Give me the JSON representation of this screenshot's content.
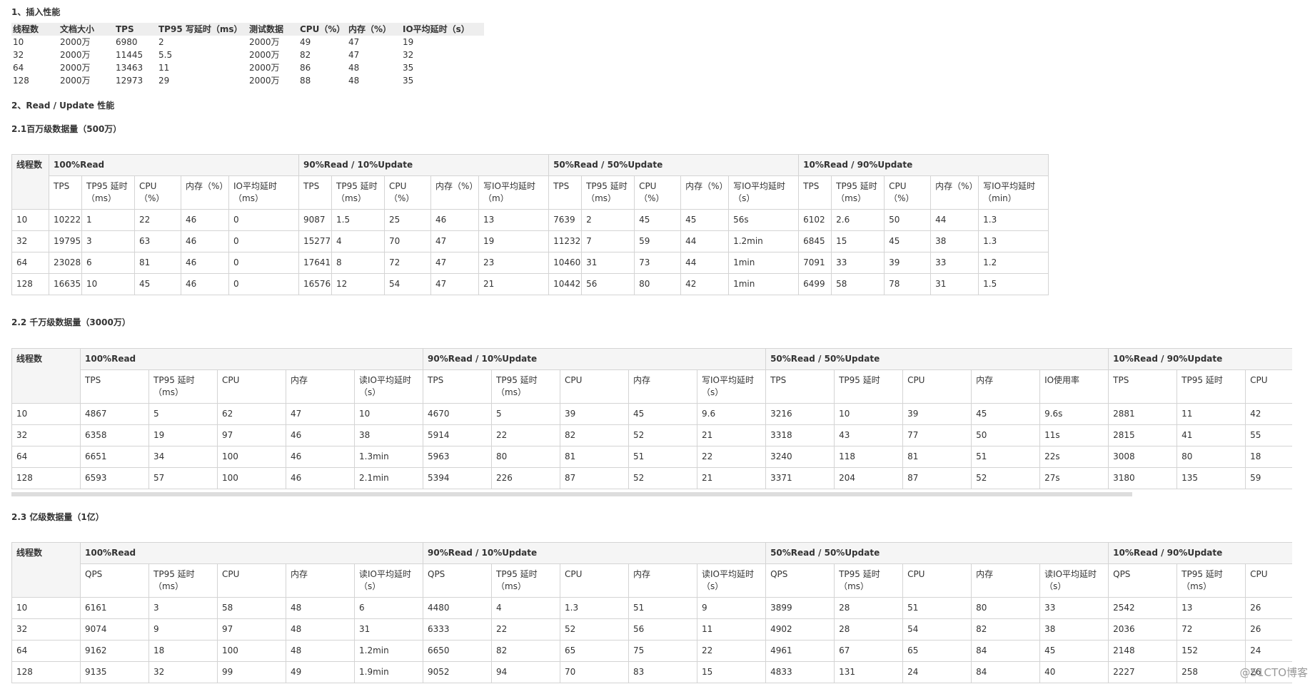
{
  "insert": {
    "title": "1、插入性能",
    "headers": [
      "线程数",
      "文档大小",
      "TPS",
      "TP95 写延时（ms）",
      "测试数据",
      "CPU（%）",
      "内存（%）",
      "IO平均延时（s）"
    ],
    "rows": [
      [
        "10",
        "2000万",
        "6980",
        "2",
        "2000万",
        "49",
        "47",
        "19"
      ],
      [
        "32",
        "2000万",
        "11445",
        "5.5",
        "2000万",
        "82",
        "47",
        "32"
      ],
      [
        "64",
        "2000万",
        "13463",
        "11",
        "2000万",
        "86",
        "48",
        "35"
      ],
      [
        "128",
        "2000万",
        "12973",
        "29",
        "2000万",
        "88",
        "48",
        "35"
      ]
    ]
  },
  "rw_title": "2、Read / Update 性能",
  "tables": [
    {
      "title": "2.1百万级数据量（500万）",
      "corner": "线程数",
      "groups": [
        {
          "name": "100%Read",
          "headers": [
            "TPS",
            "TP95 延时（ms）",
            "CPU（%）",
            "内存（%）",
            "IO平均延时（ms）"
          ]
        },
        {
          "name": "90%Read / 10%Update",
          "headers": [
            "TPS",
            "TP95 延时（ms）",
            "CPU（%）",
            "内存（%）",
            "写IO平均延时（m）"
          ]
        },
        {
          "name": "50%Read / 50%Update",
          "headers": [
            "TPS",
            "TP95 延时（ms）",
            "CPU（%）",
            "内存（%）",
            "写IO平均延时（s）"
          ]
        },
        {
          "name": "10%Read / 90%Update",
          "headers": [
            "TPS",
            "TP95 延时（ms）",
            "CPU（%）",
            "内存（%）",
            "写IO平均延时（min）"
          ]
        }
      ],
      "rows": [
        [
          "10",
          "10222",
          "1",
          "22",
          "46",
          "0",
          "9087",
          "1.5",
          "25",
          "46",
          "13",
          "7639",
          "2",
          "45",
          "45",
          "56s",
          "6102",
          "2.6",
          "50",
          "44",
          "1.3"
        ],
        [
          "32",
          "19795",
          "3",
          "63",
          "46",
          "0",
          "15277",
          "4",
          "70",
          "47",
          "19",
          "11232",
          "7",
          "59",
          "44",
          "1.2min",
          "6845",
          "15",
          "45",
          "38",
          "1.3"
        ],
        [
          "64",
          "23028",
          "6",
          "81",
          "46",
          "0",
          "17641",
          "8",
          "72",
          "47",
          "23",
          "10460",
          "31",
          "73",
          "44",
          "1min",
          "7091",
          "33",
          "39",
          "33",
          "1.2"
        ],
        [
          "128",
          "16635",
          "10",
          "45",
          "46",
          "0",
          "16576",
          "12",
          "54",
          "47",
          "21",
          "10442",
          "56",
          "80",
          "42",
          "1min",
          "6499",
          "58",
          "78",
          "31",
          "1.5"
        ]
      ]
    },
    {
      "title": "2.2 千万级数据量（3000万）",
      "corner": "线程数",
      "groups": [
        {
          "name": "100%Read",
          "headers": [
            "TPS",
            "TP95 延时（ms）",
            "CPU",
            "内存",
            "读IO平均延时（s）"
          ]
        },
        {
          "name": "90%Read / 10%Update",
          "headers": [
            "TPS",
            "TP95 延时（ms）",
            "CPU",
            "内存",
            "写IO平均延时（s）"
          ]
        },
        {
          "name": "50%Read / 50%Update",
          "headers": [
            "TPS",
            "TP95 延时",
            "CPU",
            "内存",
            "IO使用率"
          ]
        },
        {
          "name": "10%Read / 90%Update",
          "headers": [
            "TPS",
            "TP95 延时",
            "CPU"
          ]
        }
      ],
      "rows": [
        [
          "10",
          "4867",
          "5",
          "62",
          "47",
          "10",
          "4670",
          "5",
          "39",
          "45",
          "9.6",
          "3216",
          "10",
          "39",
          "45",
          "9.6s",
          "2881",
          "11",
          "42"
        ],
        [
          "32",
          "6358",
          "19",
          "97",
          "46",
          "38",
          "5914",
          "22",
          "82",
          "52",
          "21",
          "3318",
          "43",
          "77",
          "50",
          "11s",
          "2815",
          "41",
          "55"
        ],
        [
          "64",
          "6651",
          "34",
          "100",
          "46",
          "1.3min",
          "5963",
          "80",
          "81",
          "51",
          "22",
          "3240",
          "118",
          "81",
          "51",
          "22s",
          "3008",
          "80",
          "18"
        ],
        [
          "128",
          "6593",
          "57",
          "100",
          "46",
          "2.1min",
          "5394",
          "226",
          "87",
          "52",
          "21",
          "3371",
          "204",
          "87",
          "52",
          "27s",
          "3180",
          "135",
          "59"
        ]
      ]
    },
    {
      "title": "2.3 亿级数据量（1亿）",
      "corner": "线程数",
      "groups": [
        {
          "name": "100%Read",
          "headers": [
            "QPS",
            "TP95 延时（ms）",
            "CPU",
            "内存",
            "读IO平均延时（s）"
          ]
        },
        {
          "name": "90%Read / 10%Update",
          "headers": [
            "QPS",
            "TP95 延时（ms）",
            "CPU",
            "内存",
            "读IO平均延时（s）"
          ]
        },
        {
          "name": "50%Read / 50%Update",
          "headers": [
            "QPS",
            "TP95 延时（ms）",
            "CPU",
            "内存",
            "读IO平均延时（s）"
          ]
        },
        {
          "name": "10%Read / 90%Update",
          "headers": [
            "QPS",
            "TP95 延时（ms）",
            "CPU"
          ]
        }
      ],
      "rows": [
        [
          "10",
          "6161",
          "3",
          "58",
          "48",
          "6",
          "4480",
          "4",
          "1.3",
          "51",
          "9",
          "3899",
          "28",
          "51",
          "80",
          "33",
          "2542",
          "13",
          "26"
        ],
        [
          "32",
          "9074",
          "9",
          "97",
          "48",
          "31",
          "6333",
          "22",
          "52",
          "56",
          "11",
          "4902",
          "28",
          "54",
          "82",
          "38",
          "2036",
          "72",
          "26"
        ],
        [
          "64",
          "9162",
          "18",
          "100",
          "48",
          "1.2min",
          "6650",
          "82",
          "65",
          "75",
          "22",
          "4961",
          "67",
          "65",
          "84",
          "45",
          "2148",
          "152",
          "24"
        ],
        [
          "128",
          "9135",
          "32",
          "99",
          "49",
          "1.9min",
          "9052",
          "94",
          "70",
          "83",
          "15",
          "4833",
          "131",
          "24",
          "84",
          "40",
          "2227",
          "258",
          "26"
        ]
      ]
    }
  ],
  "watermark": "@51CTO博客"
}
